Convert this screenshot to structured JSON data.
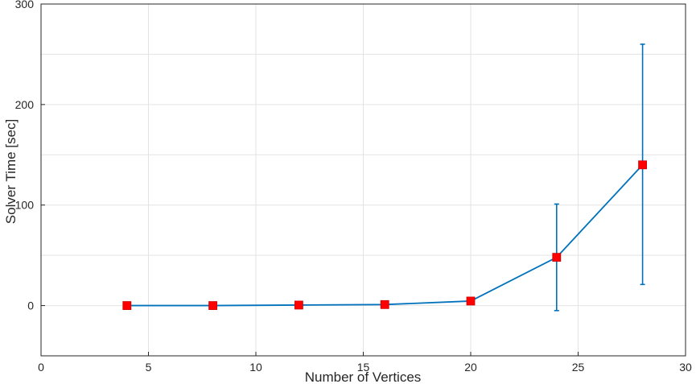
{
  "chart_data": {
    "type": "line",
    "title": "",
    "xlabel": "Number of Vertices",
    "ylabel": "Solver Time [sec]",
    "xlim": [
      0,
      30
    ],
    "ylim": [
      -50,
      300
    ],
    "xticks": [
      0,
      5,
      10,
      15,
      20,
      25,
      30
    ],
    "yticks": [
      0,
      100,
      200,
      300
    ],
    "grid": true,
    "legend": "none",
    "series": [
      {
        "x": [
          4,
          8,
          12,
          16,
          20,
          24,
          28
        ],
        "y": [
          0,
          0,
          0.5,
          1,
          4.5,
          48,
          140
        ],
        "err_low": [
          0,
          0,
          0.5,
          1,
          3,
          -5,
          21
        ],
        "err_high": [
          0,
          0,
          0.5,
          1,
          6,
          101,
          260
        ],
        "line_color": "#0072BD",
        "marker": "square",
        "marker_color": "#FF0000"
      }
    ]
  }
}
